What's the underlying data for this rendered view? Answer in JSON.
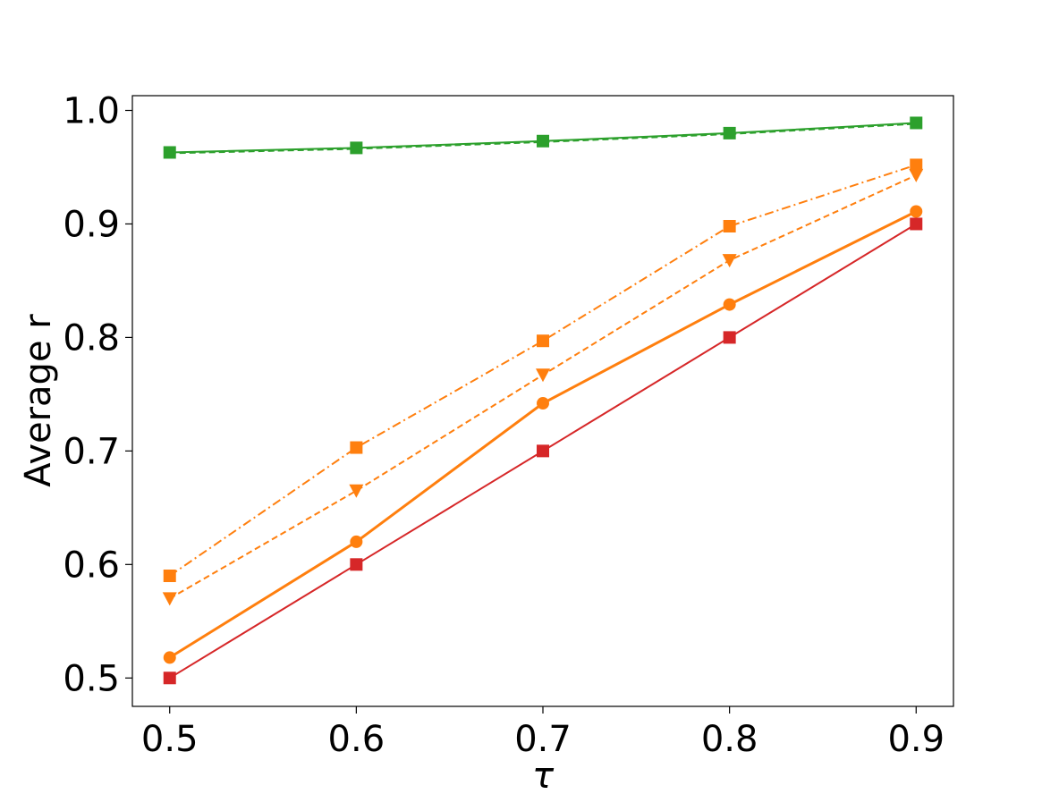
{
  "chart_data": {
    "type": "line",
    "xlabel": "τ",
    "ylabel": "Average r",
    "xlim": [
      0.48,
      0.92
    ],
    "ylim": [
      0.475,
      1.013
    ],
    "x": [
      0.5,
      0.6,
      0.7,
      0.8,
      0.9
    ],
    "x_ticks": [
      "0.5",
      "0.6",
      "0.7",
      "0.8",
      "0.9"
    ],
    "y_ticks": [
      "0.5",
      "0.6",
      "0.7",
      "0.8",
      "0.9",
      "1.0"
    ],
    "y_tick_values": [
      0.5,
      0.6,
      0.7,
      0.8,
      0.9,
      1.0
    ],
    "grid": false,
    "series": [
      {
        "values": [
          0.963,
          0.967,
          0.973,
          0.98,
          0.989
        ],
        "color": "#2ca02c",
        "marker": "square",
        "line": "solid",
        "width": 2
      },
      {
        "values": [
          0.962,
          0.966,
          0.972,
          0.979,
          0.988
        ],
        "color": "#2ca02c",
        "marker": "none",
        "line": "dashed",
        "width": 1.5
      },
      {
        "values": [
          0.59,
          0.703,
          0.797,
          0.898,
          0.952
        ],
        "color": "#ff7f0e",
        "marker": "square",
        "line": "dashdot",
        "width": 2
      },
      {
        "values": [
          0.57,
          0.665,
          0.767,
          0.868,
          0.943
        ],
        "color": "#ff7f0e",
        "marker": "triangle-down",
        "line": "dashed",
        "width": 2
      },
      {
        "values": [
          0.518,
          0.62,
          0.742,
          0.829,
          0.911
        ],
        "color": "#ff7f0e",
        "marker": "circle",
        "line": "solid",
        "width": 3
      },
      {
        "values": [
          0.5,
          0.6,
          0.7,
          0.8,
          0.9
        ],
        "color": "#d62728",
        "marker": "square",
        "line": "solid",
        "width": 2
      }
    ]
  }
}
